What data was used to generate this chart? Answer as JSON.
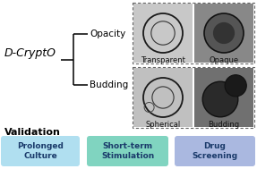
{
  "title": "D-CryptO",
  "branch1": "Opacity",
  "branch2": "Budding",
  "labels_top": [
    "Transparent",
    "Opaque"
  ],
  "labels_bottom": [
    "Spherical",
    "Budding"
  ],
  "validation_title": "Validation",
  "buttons": [
    "Prolonged\nCulture",
    "Short-term\nStimulation",
    "Drug\nScreening"
  ],
  "btn_colors": [
    "#b8e8f8",
    "#82d8c8",
    "#b8c8e8"
  ],
  "bg_color": "#ffffff",
  "text_color": "#000000",
  "btn_text_color": "#1a3a6a",
  "dashed_box_color": "#666666",
  "branch_color": "#000000",
  "organoid_bg_transparent": "#d8d8d8",
  "organoid_bg_opaque": "#b0b0b0",
  "organoid_bg_spherical": "#c8c8c8",
  "organoid_bg_budding": "#909090"
}
